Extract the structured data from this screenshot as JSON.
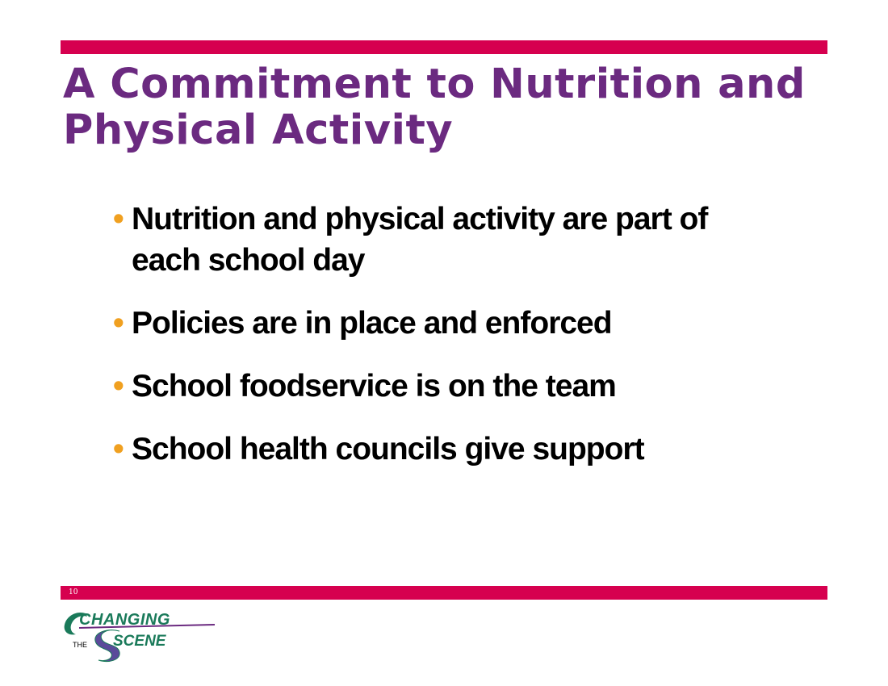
{
  "slide": {
    "title": "A Commitment to Nutrition and Physical Activity",
    "bullets": [
      "Nutrition and physical activity are part of each school day",
      "Policies are in place and enforced",
      "School foodservice is on the team",
      "School health councils give support"
    ],
    "bullet_glyph": "•",
    "page_number": "10"
  },
  "logo": {
    "text_changing": "CHANGING",
    "text_the": "THE",
    "text_scene": "SCENE"
  },
  "colors": {
    "bar": "#d6004f",
    "title": "#6b2a80",
    "bullet_dot": "#f0a020",
    "logo_green": "#1a7a5a",
    "logo_purple": "#6b2a80"
  }
}
